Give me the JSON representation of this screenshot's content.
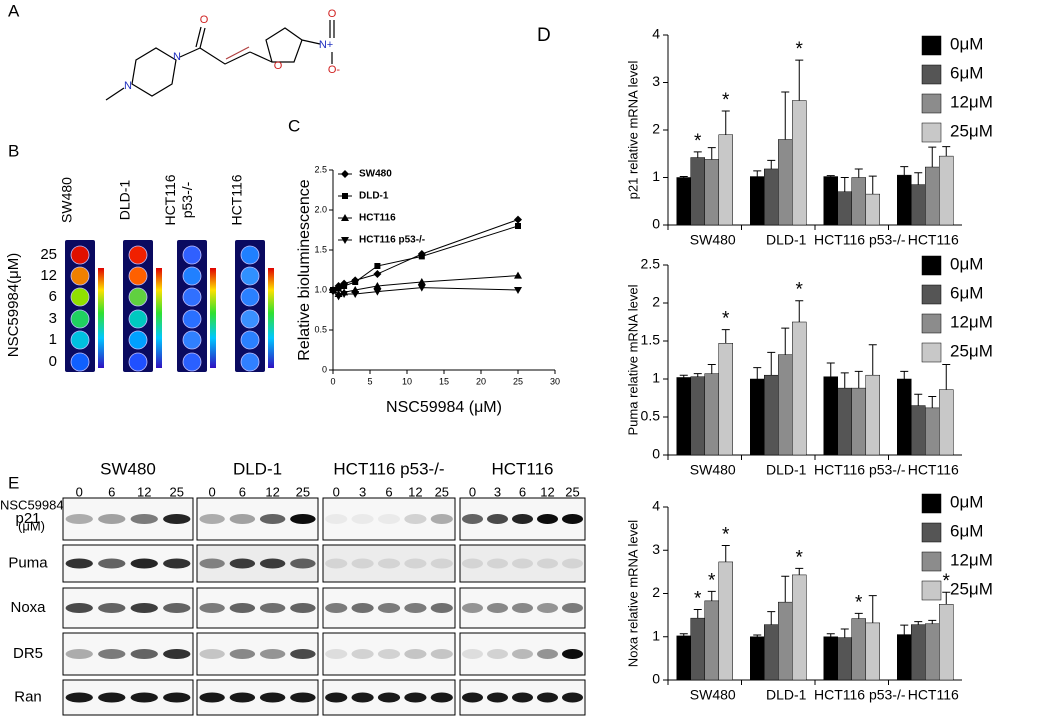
{
  "panel_a": {
    "label": "A",
    "atoms": [
      "N",
      "N",
      "O",
      "O",
      "N+",
      "O",
      "O-"
    ]
  },
  "panel_b": {
    "label": "B",
    "columns": [
      [
        "SW480"
      ],
      [
        "DLD-1"
      ],
      [
        "HCT116",
        "p53-/-"
      ],
      [
        "HCT116"
      ]
    ],
    "y_label": "NSC59984(μM)",
    "rows": [
      "25",
      "12",
      "6",
      "3",
      "1",
      "0"
    ]
  },
  "chart_data": [
    {
      "type": "line",
      "panel_label": "C",
      "x_label": "NSC59984 (μM)",
      "y_label": "Relative bioluminescence",
      "xlim": [
        0,
        30
      ],
      "xticks": [
        0,
        5,
        10,
        15,
        20,
        25,
        30
      ],
      "ylim": [
        0,
        2.5
      ],
      "yticks": [
        0,
        0.5,
        {
          "value": 1,
          "label": "1.0"
        },
        1.5,
        {
          "value": 2,
          "label": "2.0"
        },
        2.5
      ],
      "x": [
        0,
        0.75,
        1.5,
        3,
        6,
        12,
        25
      ],
      "series": [
        {
          "name": "SW480",
          "marker": "diamond",
          "color": "#000000",
          "values": [
            1.0,
            1.05,
            1.08,
            1.12,
            1.2,
            1.45,
            1.88
          ]
        },
        {
          "name": "DLD-1",
          "marker": "square",
          "color": "#000000",
          "values": [
            1.0,
            1.02,
            1.05,
            1.1,
            1.3,
            1.42,
            1.8
          ]
        },
        {
          "name": "HCT116",
          "marker": "triangle",
          "color": "#000000",
          "values": [
            1.0,
            0.95,
            0.97,
            1.0,
            1.05,
            1.1,
            1.18
          ]
        },
        {
          "name": "HCT116 p53-/-",
          "marker": "triangle-down",
          "color": "#000000",
          "values": [
            0.98,
            0.92,
            0.95,
            0.95,
            0.98,
            1.03,
            1.0
          ]
        }
      ]
    },
    {
      "type": "bar",
      "panel_label": "D",
      "y_label": "p21 relative mRNA level",
      "ylim": [
        0,
        4
      ],
      "yticks": [
        0,
        1,
        2,
        3,
        4
      ],
      "categories": [
        "SW480",
        "DLD-1",
        "HCT116 p53-/-",
        "HCT116"
      ],
      "series": [
        {
          "name": "0μM",
          "color": "#000000",
          "values": [
            1.0,
            1.02,
            1.02,
            1.05
          ],
          "errors": [
            0.02,
            0.12,
            0.02,
            0.18
          ]
        },
        {
          "name": "6μM",
          "color": "#555555",
          "values": [
            1.42,
            1.18,
            0.7,
            0.85
          ],
          "errors": [
            0.12,
            0.18,
            0.3,
            0.25
          ]
        },
        {
          "name": "12μM",
          "color": "#8c8c8c",
          "values": [
            1.38,
            1.8,
            1.0,
            1.22
          ],
          "errors": [
            0.25,
            1.0,
            0.18,
            0.42
          ]
        },
        {
          "name": "25μM",
          "color": "#c8c8c8",
          "values": [
            1.9,
            2.62,
            0.65,
            1.45
          ],
          "errors": [
            0.5,
            0.85,
            0.38,
            0.2
          ]
        }
      ],
      "annotations": [
        "*",
        "*",
        "*"
      ]
    },
    {
      "type": "bar",
      "y_label": "Puma relative mRNA level",
      "ylim": [
        0,
        2.5
      ],
      "yticks": [
        0,
        0.5,
        1,
        1.5,
        2,
        2.5
      ],
      "categories": [
        "SW480",
        "DLD-1",
        "HCT116 p53-/-",
        "HCT116"
      ],
      "series": [
        {
          "name": "0μM",
          "color": "#000000",
          "values": [
            1.02,
            1.0,
            1.03,
            1.0
          ],
          "errors": [
            0.03,
            0.15,
            0.18,
            0.1
          ]
        },
        {
          "name": "6μM",
          "color": "#555555",
          "values": [
            1.03,
            1.05,
            0.88,
            0.65
          ],
          "errors": [
            0.04,
            0.3,
            0.2,
            0.15
          ]
        },
        {
          "name": "12μM",
          "color": "#8c8c8c",
          "values": [
            1.07,
            1.32,
            0.88,
            0.62
          ],
          "errors": [
            0.12,
            0.35,
            0.22,
            0.15
          ]
        },
        {
          "name": "25μM",
          "color": "#c8c8c8",
          "values": [
            1.47,
            1.75,
            1.05,
            0.86
          ],
          "errors": [
            0.18,
            0.28,
            0.4,
            0.33
          ]
        }
      ],
      "annotations": [
        "*",
        "*"
      ]
    },
    {
      "type": "bar",
      "y_label": "Noxa relative mRNA level",
      "ylim": [
        0,
        4
      ],
      "yticks": [
        0,
        1,
        2,
        3,
        4
      ],
      "categories": [
        "SW480",
        "DLD-1",
        "HCT116 p53-/-",
        "HCT116"
      ],
      "series": [
        {
          "name": "0μM",
          "color": "#000000",
          "values": [
            1.02,
            1.0,
            1.0,
            1.05
          ],
          "errors": [
            0.05,
            0.04,
            0.07,
            0.22
          ]
        },
        {
          "name": "6μM",
          "color": "#555555",
          "values": [
            1.43,
            1.28,
            0.98,
            1.28
          ],
          "errors": [
            0.2,
            0.3,
            0.2,
            0.07
          ]
        },
        {
          "name": "12μM",
          "color": "#8c8c8c",
          "values": [
            1.83,
            1.8,
            1.42,
            1.3
          ],
          "errors": [
            0.22,
            0.6,
            0.12,
            0.08
          ]
        },
        {
          "name": "25μM",
          "color": "#c8c8c8",
          "values": [
            2.73,
            2.43,
            1.32,
            1.75
          ],
          "errors": [
            0.38,
            0.15,
            0.63,
            0.28
          ]
        }
      ],
      "annotations": [
        "*",
        "*",
        "*",
        "*",
        "*",
        "*"
      ]
    }
  ],
  "panel_e": {
    "label": "E",
    "dose_label": [
      "NSC59984",
      "(μM)"
    ],
    "groups": [
      {
        "name": "SW480",
        "doses": [
          "0",
          "6",
          "12",
          "25"
        ]
      },
      {
        "name": "DLD-1",
        "doses": [
          "0",
          "6",
          "12",
          "25"
        ]
      },
      {
        "name": "HCT116 p53-/-",
        "doses": [
          "0",
          "3",
          "6",
          "12",
          "25"
        ]
      },
      {
        "name": "HCT116",
        "doses": [
          "0",
          "3",
          "6",
          "12",
          "25"
        ]
      }
    ],
    "proteins": [
      "p21",
      "Puma",
      "Noxa",
      "DR5",
      "Ran"
    ]
  }
}
